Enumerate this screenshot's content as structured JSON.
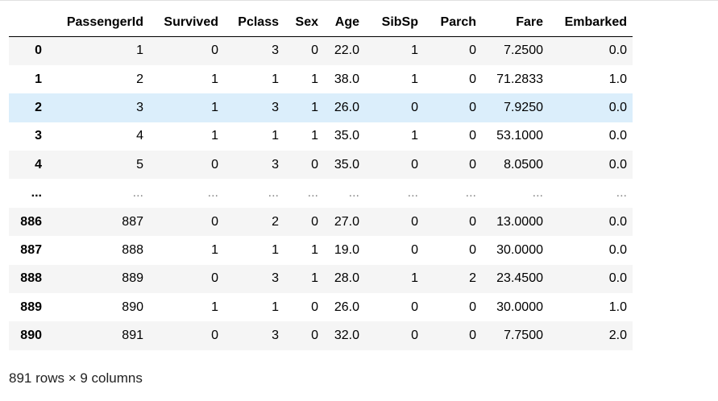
{
  "dataframe": {
    "columns": [
      "PassengerId",
      "Survived",
      "Pclass",
      "Sex",
      "Age",
      "SibSp",
      "Parch",
      "Fare",
      "Embarked"
    ],
    "rows": [
      {
        "index": "0",
        "cells": [
          "1",
          "0",
          "3",
          "0",
          "22.0",
          "1",
          "0",
          "7.2500",
          "0.0"
        ]
      },
      {
        "index": "1",
        "cells": [
          "2",
          "1",
          "1",
          "1",
          "38.0",
          "1",
          "0",
          "71.2833",
          "1.0"
        ]
      },
      {
        "index": "2",
        "cells": [
          "3",
          "1",
          "3",
          "1",
          "26.0",
          "0",
          "0",
          "7.9250",
          "0.0"
        ]
      },
      {
        "index": "3",
        "cells": [
          "4",
          "1",
          "1",
          "1",
          "35.0",
          "1",
          "0",
          "53.1000",
          "0.0"
        ]
      },
      {
        "index": "4",
        "cells": [
          "5",
          "0",
          "3",
          "0",
          "35.0",
          "0",
          "0",
          "8.0500",
          "0.0"
        ]
      },
      {
        "index": "...",
        "cells": [
          "...",
          "...",
          "...",
          "...",
          "...",
          "...",
          "...",
          "...",
          "..."
        ]
      },
      {
        "index": "886",
        "cells": [
          "887",
          "0",
          "2",
          "0",
          "27.0",
          "0",
          "0",
          "13.0000",
          "0.0"
        ]
      },
      {
        "index": "887",
        "cells": [
          "888",
          "1",
          "1",
          "1",
          "19.0",
          "0",
          "0",
          "30.0000",
          "0.0"
        ]
      },
      {
        "index": "888",
        "cells": [
          "889",
          "0",
          "3",
          "1",
          "28.0",
          "1",
          "2",
          "23.4500",
          "0.0"
        ]
      },
      {
        "index": "889",
        "cells": [
          "890",
          "1",
          "1",
          "0",
          "26.0",
          "0",
          "0",
          "30.0000",
          "1.0"
        ]
      },
      {
        "index": "890",
        "cells": [
          "891",
          "0",
          "3",
          "0",
          "32.0",
          "0",
          "0",
          "7.7500",
          "2.0"
        ]
      }
    ],
    "highlighted_row_index": "2",
    "shape_text": "891 rows × 9 columns"
  },
  "colors": {
    "odd_row": "#f5f5f5",
    "even_row": "#ffffff",
    "hover_row": "#dbeefb",
    "header_border": "#000000"
  }
}
